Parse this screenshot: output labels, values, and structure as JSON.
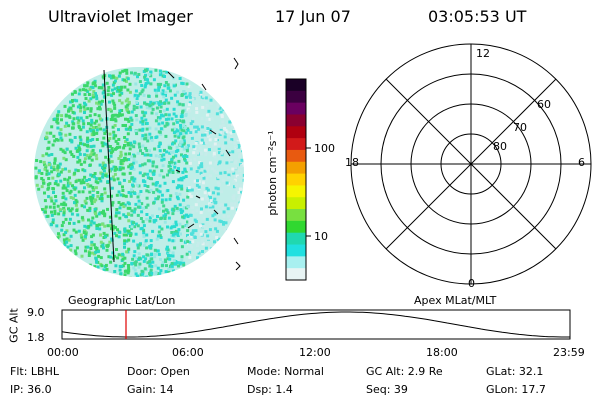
{
  "header": {
    "title": "Ultraviolet Imager",
    "date": "17 Jun 07",
    "time": "03:05:53 UT"
  },
  "colorbar": {
    "label": "photon cm⁻²s⁻¹",
    "ticks": [
      "100",
      "10"
    ],
    "colors": [
      "#1a0026",
      "#3b0040",
      "#6a0060",
      "#8a0030",
      "#b00010",
      "#d21a1a",
      "#e85a10",
      "#f4a000",
      "#ffd200",
      "#f5f500",
      "#c8f000",
      "#78e040",
      "#30d830",
      "#20d8b0",
      "#20e0e0",
      "#a8f0f0",
      "#e8f4f4"
    ]
  },
  "captions": {
    "left": "Geographic Lat/Lon",
    "right": "Apex MLat/MLT"
  },
  "polar": {
    "mlt_labels": {
      "top": "12",
      "left": "18",
      "right": "6",
      "bottom": "0"
    },
    "lat_labels": [
      "60",
      "70",
      "80"
    ]
  },
  "altitude_plot": {
    "ylabel": "GC Alt",
    "yticks": [
      "9.0",
      "1.8"
    ],
    "xticks": [
      "00:00",
      "06:00",
      "12:00",
      "18:00",
      "23:59"
    ],
    "marker_time": "03:05:53",
    "curve_color": "#000000",
    "marker_color": "#e00000"
  },
  "info": {
    "filter": "Flt: LBHL",
    "ip": "IP: 36.0",
    "door": "Door: Open",
    "gain": "Gain: 14",
    "mode": "Mode: Normal",
    "dsp": "Dsp:    1.4",
    "gc_alt": "GC Alt: 2.9 Re",
    "seq": "Seq: 39",
    "glat": "GLat:  32.1",
    "glon": "GLon:  17.7"
  }
}
